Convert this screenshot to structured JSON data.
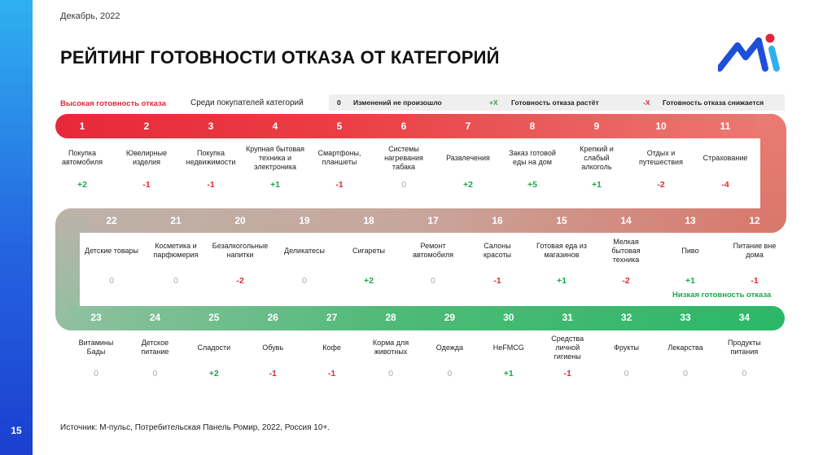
{
  "date": "Декабрь, 2022",
  "title": "РЕЙТИНГ ГОТОВНОСТИ ОТКАЗА ОТ КАТЕГОРИЙ",
  "page_number": "15",
  "legend": {
    "high": "Высокая готовность  отказа",
    "among": "Среди покупателей категорий",
    "zero_sym": "0",
    "zero_text": "Изменений не произошло",
    "plus_sym": "+X",
    "plus_text": "Готовность отказа растёт",
    "minus_sym": "-X",
    "minus_text": "Готовность отказа снижается",
    "low": "Низкая готовность  отказа"
  },
  "colors": {
    "red": "#e02838",
    "green": "#1aa84a",
    "gray": "#aaaaaa",
    "accent": "#2563e0"
  },
  "rows": [
    [
      {
        "n": "1",
        "name": "Покупка\nавтомобиля",
        "delta": "+2"
      },
      {
        "n": "2",
        "name": "Ювелирные\nизделия",
        "delta": "-1"
      },
      {
        "n": "3",
        "name": "Покупка\nнедвижимости",
        "delta": "-1"
      },
      {
        "n": "4",
        "name": "Крупная бытовая\nтехника и\nэлектроника",
        "delta": "+1"
      },
      {
        "n": "5",
        "name": "Смартфоны,\nпланшеты",
        "delta": "-1"
      },
      {
        "n": "6",
        "name": "Системы\nнагревания\nтабака",
        "delta": "0"
      },
      {
        "n": "7",
        "name": "Развлечения",
        "delta": "+2"
      },
      {
        "n": "8",
        "name": "Заказ готовой\nеды на дом",
        "delta": "+5"
      },
      {
        "n": "9",
        "name": "Крепкий и\nслабый\nалкоголь",
        "delta": "+1"
      },
      {
        "n": "10",
        "name": "Отдых и\nпутешествия",
        "delta": "-2"
      },
      {
        "n": "11",
        "name": "Страхование",
        "delta": "-4"
      }
    ],
    [
      {
        "n": "22",
        "name": "Детские товары",
        "delta": "0"
      },
      {
        "n": "21",
        "name": "Косметика и\nпарфюмерия",
        "delta": "0"
      },
      {
        "n": "20",
        "name": "Безалкогольные\nнапитки",
        "delta": "-2"
      },
      {
        "n": "19",
        "name": "Деликатесы",
        "delta": "0"
      },
      {
        "n": "18",
        "name": "Сигареты",
        "delta": "+2"
      },
      {
        "n": "17",
        "name": "Ремонт\nавтомобиля",
        "delta": "0"
      },
      {
        "n": "16",
        "name": "Салоны\nкрасоты",
        "delta": "-1"
      },
      {
        "n": "15",
        "name": "Готовая еда из\nмагазинов",
        "delta": "+1"
      },
      {
        "n": "14",
        "name": "Мелкая\nбытовая\nтехника",
        "delta": "-2"
      },
      {
        "n": "13",
        "name": "Пиво",
        "delta": "+1"
      },
      {
        "n": "12",
        "name": "Питание вне\nдома",
        "delta": "-1"
      }
    ],
    [
      {
        "n": "23",
        "name": "Витамины\nБады",
        "delta": "0"
      },
      {
        "n": "24",
        "name": "Детское\nпитание",
        "delta": "0"
      },
      {
        "n": "25",
        "name": "Сладости",
        "delta": "+2"
      },
      {
        "n": "26",
        "name": "Обувь",
        "delta": "-1"
      },
      {
        "n": "27",
        "name": "Кофе",
        "delta": "-1"
      },
      {
        "n": "28",
        "name": "Корма для\nживотных",
        "delta": "0"
      },
      {
        "n": "29",
        "name": "Одежда",
        "delta": "0"
      },
      {
        "n": "30",
        "name": "НеFMCG",
        "delta": "+1"
      },
      {
        "n": "31",
        "name": "Средства\nличной\nгигиены",
        "delta": "-1"
      },
      {
        "n": "32",
        "name": "Фрукты",
        "delta": "0"
      },
      {
        "n": "33",
        "name": "Лекарства",
        "delta": "0"
      },
      {
        "n": "34",
        "name": "Продукты\nпитания",
        "delta": "0"
      }
    ]
  ],
  "source": "Источник: М-пульс, Потребительская Панель Ромир, 2022, Россия 10+."
}
